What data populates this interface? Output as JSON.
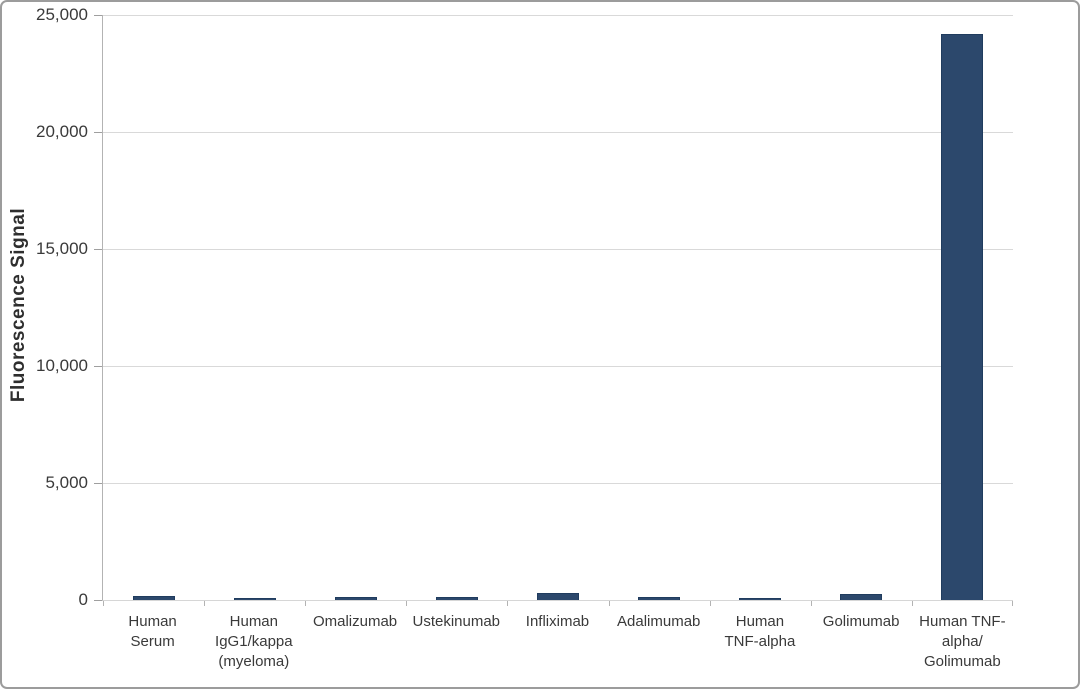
{
  "figure": {
    "background": "#ffffff",
    "border_color": "#9c9c9c"
  },
  "chart_data": {
    "type": "bar",
    "title": "",
    "xlabel": "",
    "ylabel": "Fluorescence Signal",
    "ylim": [
      0,
      25000
    ],
    "grid": true,
    "legend": null,
    "bar_color": "#2c486c",
    "bar_border_color": "#203c5e",
    "gridline_color": "#d9d9d9",
    "axis_color": "#b3b3b3",
    "text_color": "#3a3a3a",
    "yticks": [
      {
        "value": 0,
        "label": "0"
      },
      {
        "value": 5000,
        "label": "5,000"
      },
      {
        "value": 10000,
        "label": "10,000"
      },
      {
        "value": 15000,
        "label": "15,000"
      },
      {
        "value": 20000,
        "label": "20,000"
      },
      {
        "value": 25000,
        "label": "25,000"
      }
    ],
    "categories": [
      "Human Serum",
      "Human IgG1/kappa (myeloma)",
      "Omalizumab",
      "Ustekinumab",
      "Infliximab",
      "Adalimumab",
      "Human TNF-alpha",
      "Golimumab",
      "Human TNF-alpha/Golimumab"
    ],
    "category_label_lines": [
      [
        "Human",
        "Serum"
      ],
      [
        "Human",
        "IgG1/kappa",
        "(myeloma)"
      ],
      [
        "Omalizumab"
      ],
      [
        "Ustekinumab"
      ],
      [
        "Infliximab"
      ],
      [
        "Adalimumab"
      ],
      [
        "Human",
        "TNF-alpha"
      ],
      [
        "Golimumab"
      ],
      [
        "Human TNF-",
        "alpha/",
        "Golimumab"
      ]
    ],
    "values": [
      160,
      80,
      140,
      130,
      280,
      150,
      80,
      250,
      24200
    ]
  }
}
